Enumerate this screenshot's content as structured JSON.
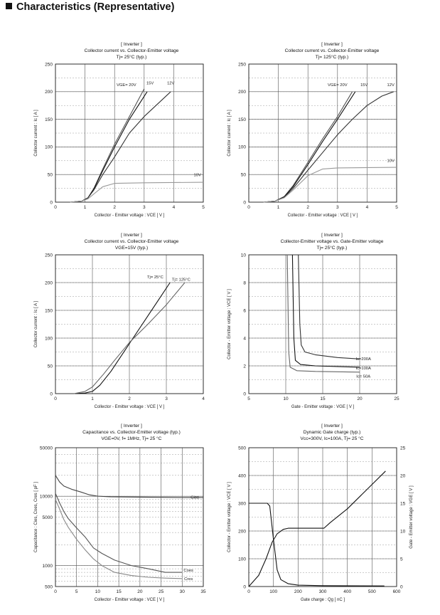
{
  "page": {
    "heading": "Characteristics (Representative)"
  },
  "chart_data": [
    {
      "id": "c1",
      "type": "line",
      "header": [
        "[ Inverter ]",
        "Collector current  vs.  Collector-Emitter voltage",
        "Tj= 25°C  (typ.)"
      ],
      "xlabel": "Collector - Emitter voltage :  VCE  [ V ]",
      "ylabel": "Collector current :  Ic  [ A ]",
      "xlim": [
        0,
        5
      ],
      "ylim": [
        0,
        250
      ],
      "xticks": [
        0,
        1,
        2,
        3,
        4,
        5
      ],
      "yticks": [
        0,
        50,
        100,
        150,
        200,
        250
      ],
      "series": [
        {
          "name": "VGE= 20V",
          "color": "#555555",
          "points": [
            [
              0.5,
              0
            ],
            [
              0.9,
              2
            ],
            [
              1.1,
              8
            ],
            [
              1.3,
              25
            ],
            [
              1.6,
              60
            ],
            [
              2.0,
              105
            ],
            [
              2.5,
              155
            ],
            [
              3.0,
              205
            ]
          ],
          "label_at": [
            2.4,
            210
          ]
        },
        {
          "name": "15V",
          "color": "#111111",
          "points": [
            [
              0.5,
              0
            ],
            [
              0.9,
              2
            ],
            [
              1.1,
              8
            ],
            [
              1.3,
              24
            ],
            [
              1.6,
              57
            ],
            [
              2.0,
              100
            ],
            [
              2.5,
              150
            ],
            [
              3.1,
              200
            ]
          ],
          "label_at": [
            3.2,
            213
          ]
        },
        {
          "name": "12V",
          "color": "#333333",
          "points": [
            [
              0.5,
              0
            ],
            [
              0.9,
              2
            ],
            [
              1.1,
              8
            ],
            [
              1.3,
              22
            ],
            [
              1.6,
              50
            ],
            [
              2.0,
              82
            ],
            [
              2.5,
              125
            ],
            [
              3.0,
              155
            ],
            [
              3.5,
              180
            ],
            [
              3.9,
              200
            ]
          ],
          "label_at": [
            3.9,
            213
          ]
        },
        {
          "name": "10V",
          "color": "#999999",
          "points": [
            [
              0.5,
              0
            ],
            [
              0.9,
              2
            ],
            [
              1.1,
              6
            ],
            [
              1.3,
              15
            ],
            [
              1.6,
              28
            ],
            [
              2.0,
              34
            ],
            [
              2.5,
              34.5
            ],
            [
              3.0,
              35
            ],
            [
              5.0,
              36
            ]
          ],
          "label_at": [
            4.8,
            47
          ]
        }
      ]
    },
    {
      "id": "c2",
      "type": "line",
      "header": [
        "[ Inverter ]",
        "Collector current  vs.  Collector-Emitter voltage",
        "Tj= 125°C  (typ.)"
      ],
      "xlabel": "Collector - Emitter voltage :  VCE  [ V ]",
      "ylabel": "Collector current :  Ic  [ A ]",
      "xlim": [
        0,
        5
      ],
      "ylim": [
        0,
        250
      ],
      "xticks": [
        0,
        1,
        2,
        3,
        4,
        5
      ],
      "yticks": [
        0,
        50,
        100,
        150,
        200,
        250
      ],
      "series": [
        {
          "name": "VGE= 20V",
          "color": "#555555",
          "points": [
            [
              0.5,
              0
            ],
            [
              0.9,
              2
            ],
            [
              1.2,
              10
            ],
            [
              1.5,
              30
            ],
            [
              2.0,
              72
            ],
            [
              2.5,
              115
            ],
            [
              3.0,
              155
            ],
            [
              3.5,
              200
            ]
          ],
          "label_at": [
            3.0,
            210
          ]
        },
        {
          "name": "15V",
          "color": "#111111",
          "points": [
            [
              0.5,
              0
            ],
            [
              0.9,
              2
            ],
            [
              1.2,
              10
            ],
            [
              1.5,
              28
            ],
            [
              2.0,
              68
            ],
            [
              2.5,
              110
            ],
            [
              3.0,
              150
            ],
            [
              3.6,
              200
            ]
          ],
          "label_at": [
            3.9,
            210
          ]
        },
        {
          "name": "12V",
          "color": "#333333",
          "points": [
            [
              0.5,
              0
            ],
            [
              0.9,
              2
            ],
            [
              1.2,
              9
            ],
            [
              1.5,
              25
            ],
            [
              2.0,
              58
            ],
            [
              2.5,
              90
            ],
            [
              3.0,
              122
            ],
            [
              3.5,
              150
            ],
            [
              4.0,
              175
            ],
            [
              4.5,
              192
            ],
            [
              4.9,
              200
            ]
          ],
          "label_at": [
            4.8,
            210
          ]
        },
        {
          "name": "10V",
          "color": "#999999",
          "points": [
            [
              0.5,
              0
            ],
            [
              0.9,
              2
            ],
            [
              1.2,
              8
            ],
            [
              1.5,
              22
            ],
            [
              2.0,
              48
            ],
            [
              2.5,
              60
            ],
            [
              3.0,
              62
            ],
            [
              5.0,
              63
            ]
          ],
          "label_at": [
            4.8,
            73
          ]
        }
      ]
    },
    {
      "id": "c3",
      "type": "line",
      "header": [
        "[ Inverter ]",
        "Collector current  vs.  Collector-Emitter voltage",
        "VGE=15V  (typ.)"
      ],
      "xlabel": "Collector - Emitter voltage :  VCE  [ V ]",
      "ylabel": "Collector current :  Ic  [ A ]",
      "xlim": [
        0,
        4
      ],
      "ylim": [
        0,
        250
      ],
      "xticks": [
        0,
        1,
        2,
        3,
        4
      ],
      "yticks": [
        0,
        50,
        100,
        150,
        200,
        250
      ],
      "series": [
        {
          "name": "Tj= 25°C",
          "color": "#111111",
          "points": [
            [
              0.5,
              0
            ],
            [
              0.8,
              1
            ],
            [
              1.0,
              4
            ],
            [
              1.2,
              15
            ],
            [
              1.5,
              40
            ],
            [
              1.8,
              70
            ],
            [
              2.1,
              100
            ],
            [
              2.5,
              140
            ],
            [
              2.8,
              170
            ],
            [
              3.1,
              200
            ]
          ],
          "label_at": [
            2.7,
            208
          ]
        },
        {
          "name": "Tj= 125°C",
          "color": "#666666",
          "points": [
            [
              0.5,
              0
            ],
            [
              0.8,
              4
            ],
            [
              1.0,
              12
            ],
            [
              1.3,
              35
            ],
            [
              1.6,
              60
            ],
            [
              2.0,
              92
            ],
            [
              2.5,
              125
            ],
            [
              3.0,
              160
            ],
            [
              3.5,
              200
            ]
          ],
          "label_at": [
            3.4,
            203
          ]
        }
      ]
    },
    {
      "id": "c4",
      "type": "line",
      "header": [
        "[ Inverter ]",
        "Collector-Emitter voltage  vs.  Gate-Emitter voltage",
        "Tj= 25°C  (typ.)"
      ],
      "xlabel": "Gate - Emitter voltage :  VGE  [ V ]",
      "ylabel": "Collector - Emitter voltage :  VCE  [ V ]",
      "xlim": [
        5,
        25
      ],
      "ylim": [
        0,
        10
      ],
      "xticks": [
        5,
        10,
        15,
        20,
        25
      ],
      "yticks": [
        0,
        2,
        4,
        6,
        8,
        10
      ],
      "series": [
        {
          "name": "Ic=200A",
          "color": "#333333",
          "points": [
            [
              11.7,
              10
            ],
            [
              11.9,
              5
            ],
            [
              12.1,
              3.5
            ],
            [
              12.6,
              3.0
            ],
            [
              14,
              2.8
            ],
            [
              17,
              2.6
            ],
            [
              20,
              2.5
            ]
          ],
          "label_at": [
            20.5,
            2.4
          ]
        },
        {
          "name": "Ic=100A",
          "color": "#111111",
          "points": [
            [
              10.9,
              10
            ],
            [
              11.1,
              4
            ],
            [
              11.3,
              2.4
            ],
            [
              12,
              2.1
            ],
            [
              14,
              2.0
            ],
            [
              17,
              1.95
            ],
            [
              20,
              1.9
            ]
          ],
          "label_at": [
            20.5,
            1.75
          ]
        },
        {
          "name": "Ic= 50A",
          "color": "#666666",
          "points": [
            [
              10.2,
              10
            ],
            [
              10.4,
              3
            ],
            [
              10.6,
              1.9
            ],
            [
              11.5,
              1.65
            ],
            [
              14,
              1.6
            ],
            [
              20,
              1.55
            ]
          ],
          "label_at": [
            20.5,
            1.15
          ]
        }
      ]
    },
    {
      "id": "c5",
      "type": "line",
      "header": [
        "[ Inverter ]",
        "Capacitance  vs.  Collector-Emitter voltage  (typ.)",
        "VGE=0V,  f= 1MHz,  Tj= 25  °C"
      ],
      "xlabel": "Collector - Emitter voltage :  VCE  [ V ]",
      "ylabel": "Capacitance :  Cies, Coes, Cres  [ pF ]",
      "xlim": [
        0,
        35
      ],
      "ylim": [
        500,
        50000
      ],
      "yscale": "log",
      "xticks": [
        0,
        5,
        10,
        15,
        20,
        25,
        30,
        35
      ],
      "yticks": [
        500,
        1000,
        5000,
        10000,
        50000
      ],
      "series": [
        {
          "name": "Cies",
          "color": "#444444",
          "points": [
            [
              0,
              20000
            ],
            [
              1,
              16000
            ],
            [
              2,
              14000
            ],
            [
              4,
              12500
            ],
            [
              6,
              11500
            ],
            [
              8,
              10500
            ],
            [
              10,
              10000
            ],
            [
              13,
              9800
            ],
            [
              20,
              9700
            ],
            [
              30,
              9600
            ],
            [
              35,
              9600
            ]
          ],
          "label_at": [
            33,
            9200
          ]
        },
        {
          "name": "Coes",
          "color": "#555555",
          "points": [
            [
              0,
              11000
            ],
            [
              1,
              8000
            ],
            [
              2,
              6000
            ],
            [
              3,
              4800
            ],
            [
              5,
              3500
            ],
            [
              7,
              2600
            ],
            [
              9,
              1800
            ],
            [
              11,
              1500
            ],
            [
              14,
              1200
            ],
            [
              18,
              1000
            ],
            [
              22,
              900
            ],
            [
              26,
              800
            ],
            [
              30,
              800
            ]
          ],
          "label_at": [
            31.5,
            820
          ]
        },
        {
          "name": "Cres",
          "color": "#888888",
          "points": [
            [
              0,
              9000
            ],
            [
              1,
              6500
            ],
            [
              2,
              4600
            ],
            [
              3,
              3600
            ],
            [
              5,
              2400
            ],
            [
              7,
              1700
            ],
            [
              9,
              1250
            ],
            [
              11,
              1000
            ],
            [
              14,
              800
            ],
            [
              18,
              720
            ],
            [
              22,
              680
            ],
            [
              26,
              660
            ],
            [
              30,
              650
            ]
          ],
          "label_at": [
            31.5,
            620
          ]
        }
      ]
    },
    {
      "id": "c6",
      "type": "line",
      "header": [
        "[ Inverter ]",
        "Dynamic Gate charge  (typ.)",
        "Vcc=300V, Ic=100A, Tj= 25  °C"
      ],
      "xlabel": "Gate charge :  Qg  [ nC ]",
      "ylabel": "Collector - Emitter voltage :  VCE  [ V ]",
      "ylabel2": "Gate - Emitter voltage :  VGE  [ V ]",
      "xlim": [
        0,
        600
      ],
      "ylim": [
        0,
        500
      ],
      "ylim2": [
        0,
        25
      ],
      "xticks": [
        0,
        100,
        200,
        300,
        400,
        500,
        600
      ],
      "yticks": [
        0,
        100,
        200,
        300,
        400,
        500
      ],
      "yticks2": [
        0,
        5,
        10,
        15,
        20,
        25
      ],
      "series": [
        {
          "name": "VCE",
          "axis": "left",
          "color": "#111111",
          "points": [
            [
              0,
              300
            ],
            [
              75,
              300
            ],
            [
              85,
              290
            ],
            [
              100,
              170
            ],
            [
              115,
              60
            ],
            [
              130,
              25
            ],
            [
              160,
              10
            ],
            [
              200,
              5
            ],
            [
              300,
              3
            ],
            [
              550,
              2
            ]
          ]
        },
        {
          "name": "VGE",
          "axis": "right",
          "color": "#111111",
          "points": [
            [
              0,
              0
            ],
            [
              40,
              2
            ],
            [
              70,
              5
            ],
            [
              95,
              8
            ],
            [
              115,
              9.5
            ],
            [
              140,
              10.3
            ],
            [
              160,
              10.5
            ],
            [
              305,
              10.5
            ],
            [
              330,
              11.5
            ],
            [
              400,
              14
            ],
            [
              480,
              17.5
            ],
            [
              555,
              20.8
            ]
          ]
        }
      ]
    }
  ]
}
